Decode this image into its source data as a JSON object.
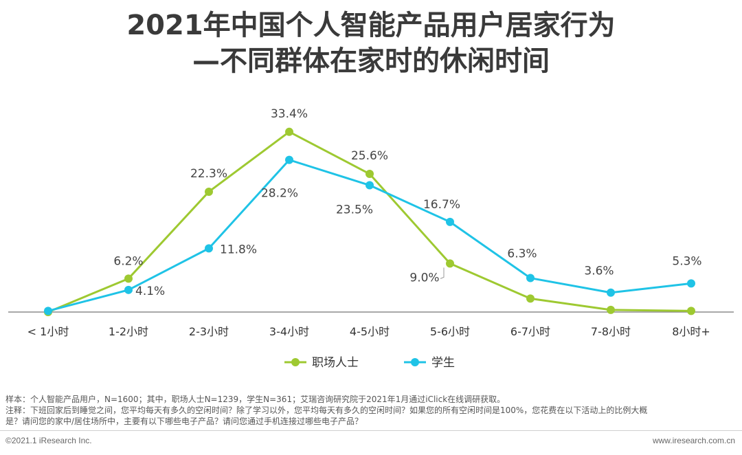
{
  "title": {
    "line1": "2021年中国个人智能产品用户居家行为",
    "line2": "—不同群体在家时的休闲时间"
  },
  "chart_data": {
    "type": "line",
    "categories": [
      "< 1小时",
      "1-2小时",
      "2-3小时",
      "3-4小时",
      "4-5小时",
      "5-6小时",
      "6-7小时",
      "7-8小时",
      "8小时+"
    ],
    "series": [
      {
        "name": "职场人士",
        "color": "#9ec931",
        "values": [
          0.0,
          6.2,
          22.3,
          33.4,
          25.6,
          9.0,
          2.5,
          0.4,
          0.2
        ],
        "labels": [
          "",
          "6.2%",
          "22.3%",
          "33.4%",
          "25.6%",
          "9.0%",
          "",
          "",
          ""
        ]
      },
      {
        "name": "学生",
        "color": "#1fc3e6",
        "values": [
          0.2,
          4.1,
          11.8,
          28.2,
          23.5,
          16.7,
          6.3,
          3.6,
          5.3
        ],
        "labels": [
          "",
          "4.1%",
          "11.8%",
          "28.2%",
          "23.5%",
          "16.7%",
          "6.3%",
          "3.6%",
          "5.3%"
        ]
      }
    ],
    "ylim": [
      0,
      35
    ],
    "unit": "%",
    "grid": false,
    "legend_position": "bottom-center"
  },
  "footer": {
    "sample": "样本：个人智能产品用户，N=1600；其中，职场人士N=1239，学生N=361；艾瑞咨询研究院于2021年1月通过iClick在线调研获取。",
    "note1": "注释：下班回家后到睡觉之间，您平均每天有多久的空闲时间？除了学习以外，您平均每天有多久的空闲时间？如果您的所有空闲时间是100%，您花费在以下活动上的比例大概",
    "note2": "是？请问您的家中/居住场所中，主要有以下哪些电子产品？请问您通过手机连接过哪些电子产品？",
    "copyright": "©2021.1 iResearch Inc.",
    "website": "www.iresearch.com.cn"
  }
}
